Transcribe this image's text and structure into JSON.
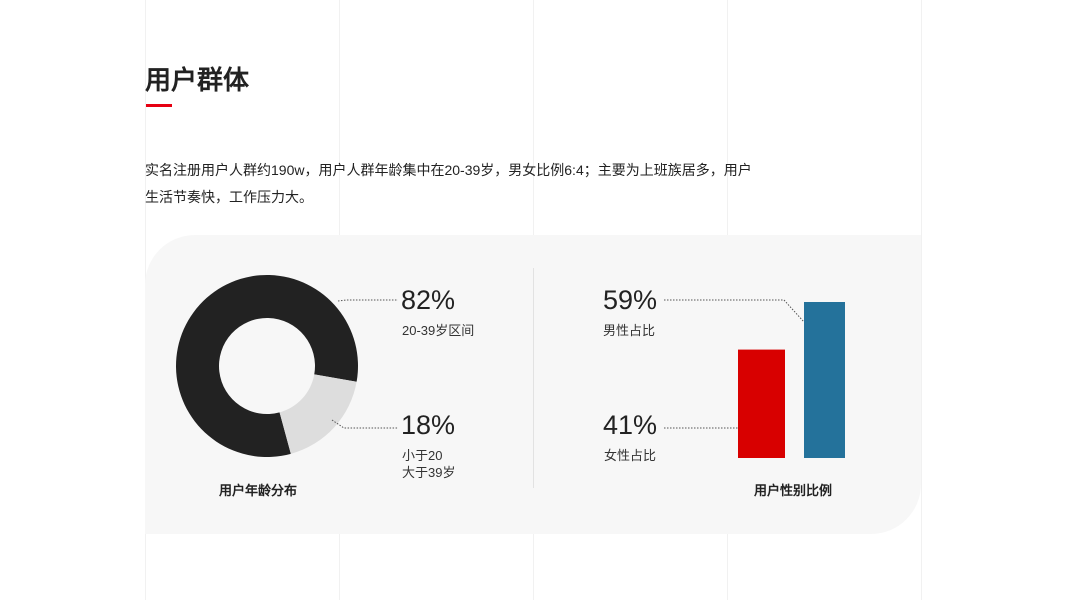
{
  "title": "用户群体",
  "description": "实名注册用户人群约190w，用户人群年龄集中在20-39岁，男女比例6:4；主要为上班族居多，用户生活节奏快，工作压力大。",
  "colors": {
    "accent": "#e60012",
    "dark": "#222222",
    "light": "#dddddd",
    "male": "#24729b",
    "female": "#d80000",
    "panel": "#f7f7f7"
  },
  "chart_data": [
    {
      "type": "pie",
      "title": "用户年龄分布",
      "slices": [
        {
          "label": "20-39岁区间",
          "value": 82,
          "display": "82%",
          "color": "#222222"
        },
        {
          "label": "小于20\n大于39岁",
          "label_lines": [
            "小于20",
            "大于39岁"
          ],
          "value": 18,
          "display": "18%",
          "color": "#dddddd"
        }
      ]
    },
    {
      "type": "bar",
      "title": "用户性别比例",
      "categories": [
        "女性占比",
        "男性占比"
      ],
      "values": [
        41,
        59
      ],
      "display": [
        "41%",
        "59%"
      ],
      "colors": [
        "#d80000",
        "#24729b"
      ]
    }
  ]
}
